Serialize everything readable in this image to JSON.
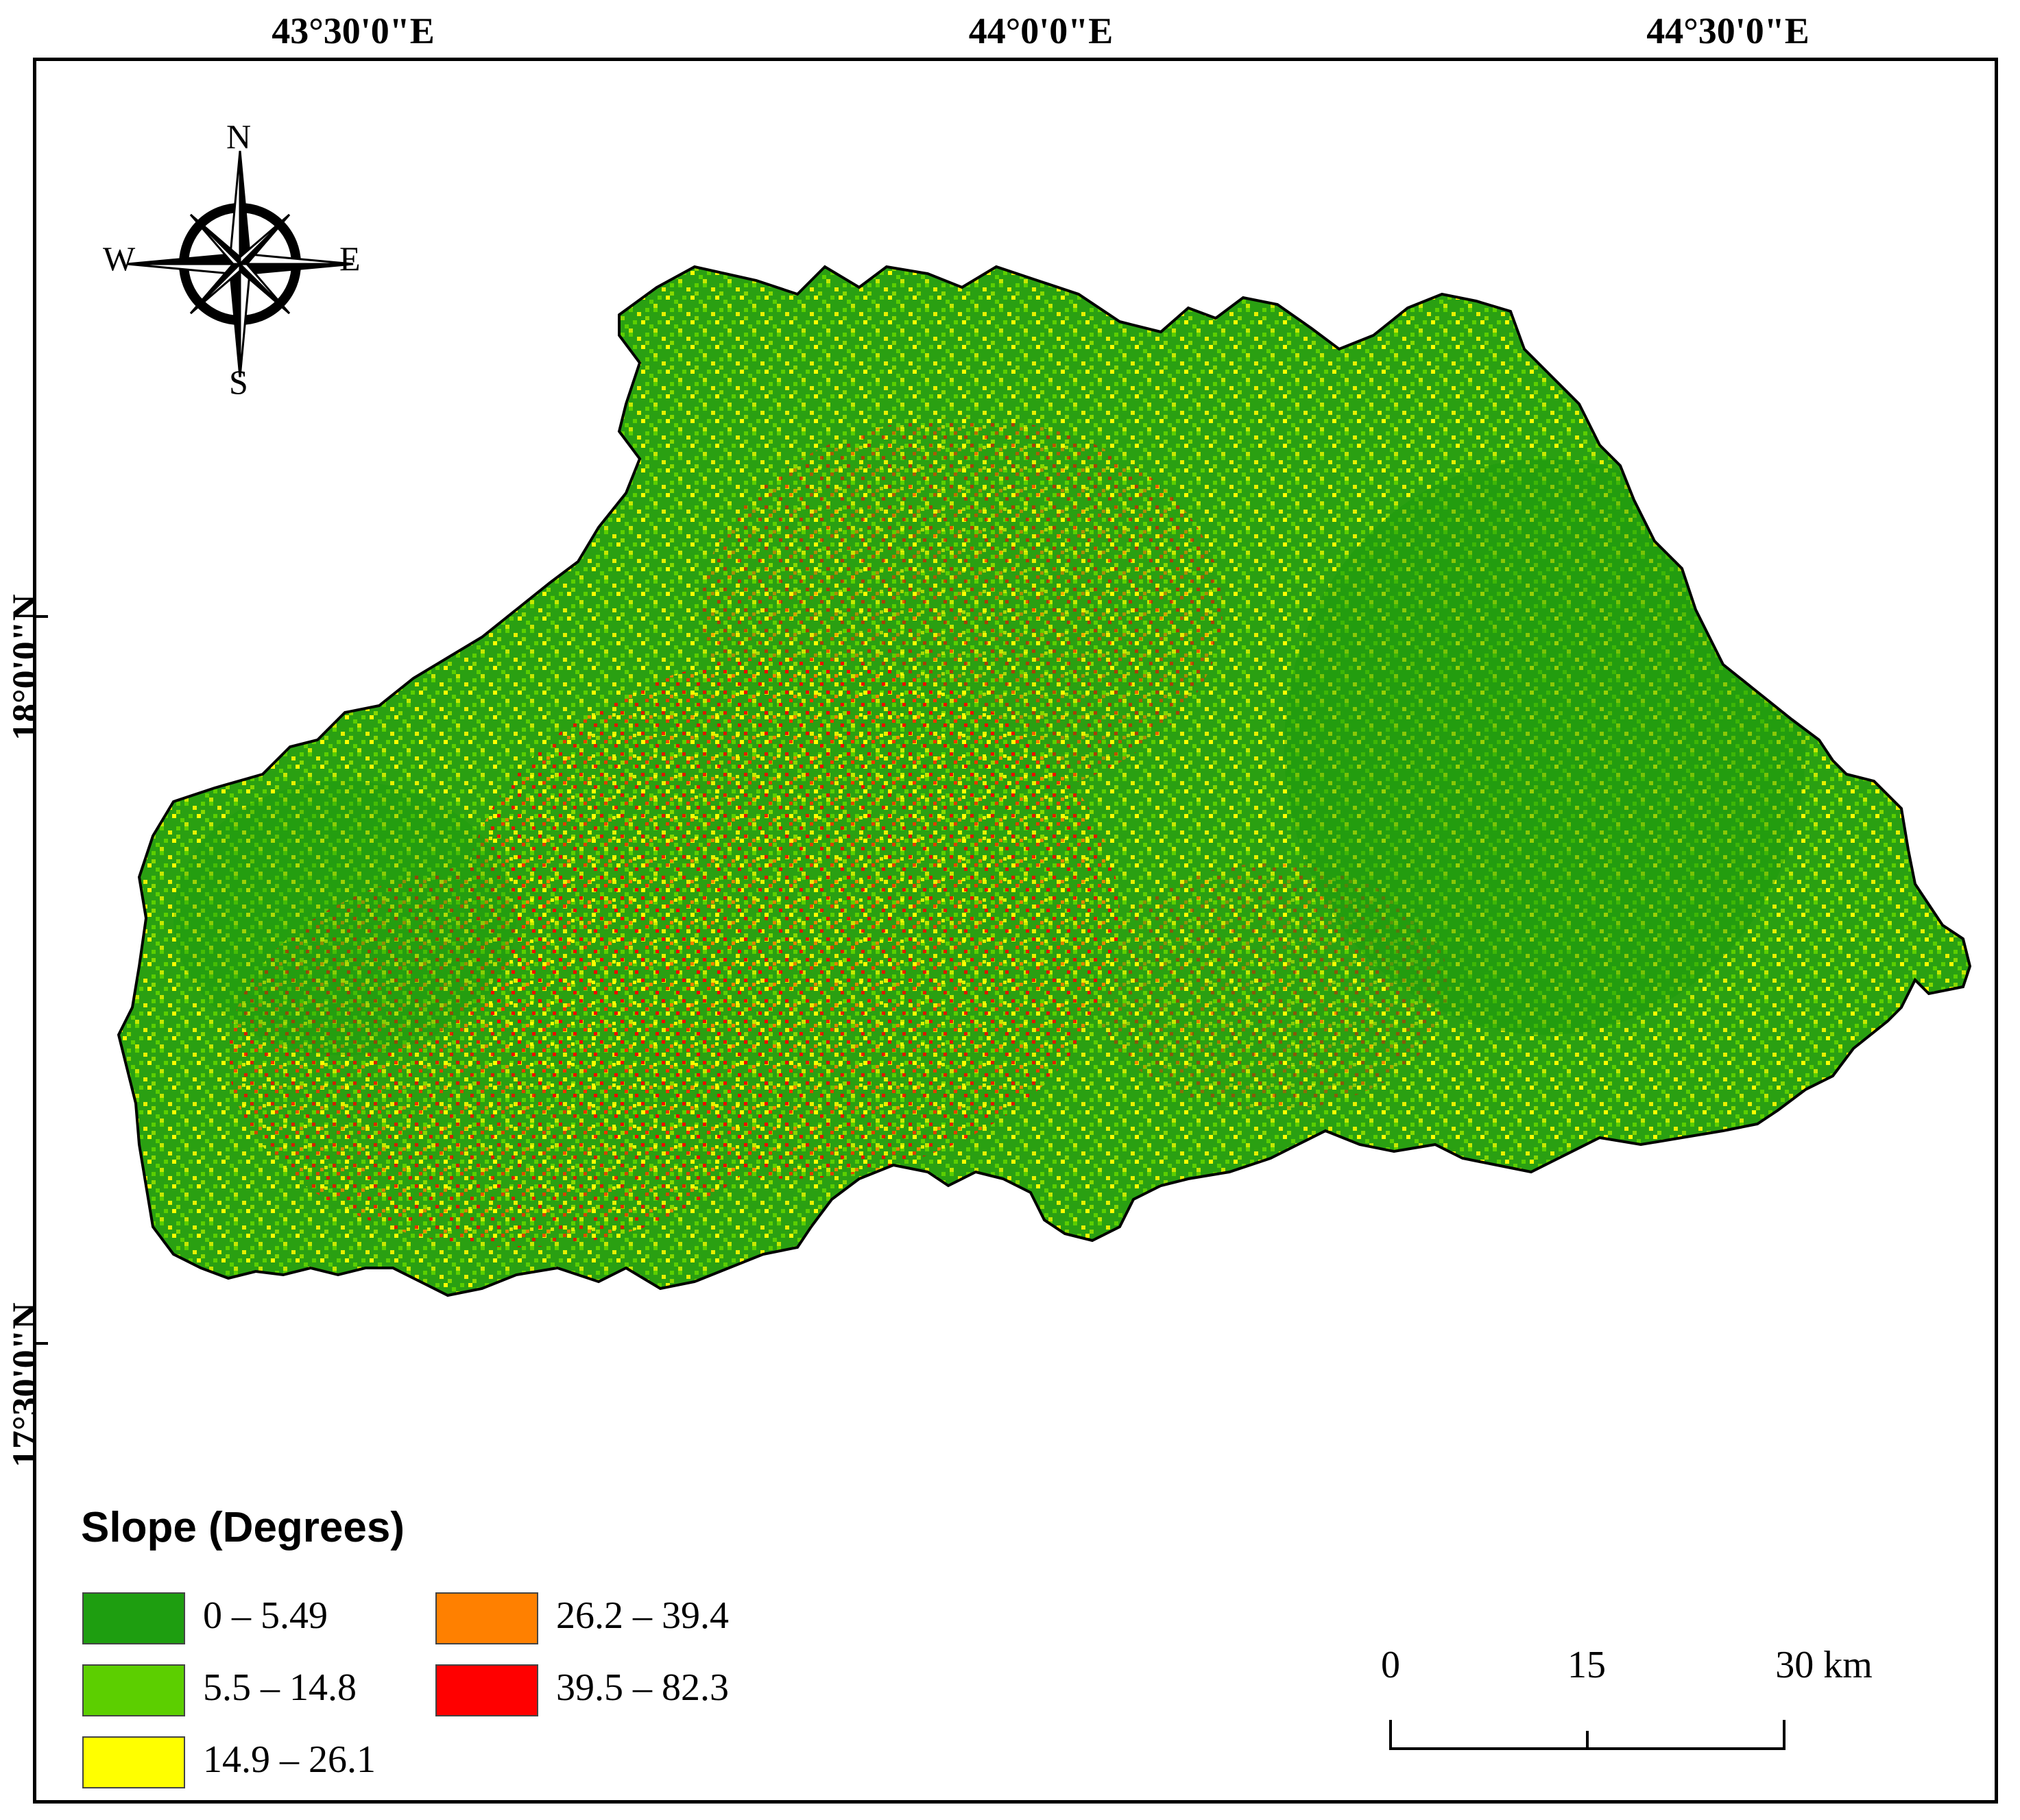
{
  "graticule": {
    "longitudes": [
      {
        "label": "43°30'0\"E"
      },
      {
        "label": "44°0'0\"E"
      },
      {
        "label": "44°30'0\"E"
      }
    ],
    "latitudes": [
      {
        "label": "18°0'0\"N"
      },
      {
        "label": "17°30'0\"N"
      }
    ]
  },
  "north_arrow": {
    "icon": "compass-rose-icon",
    "north": "N",
    "south": "S",
    "east": "E",
    "west": "W"
  },
  "legend": {
    "title": "Slope (Degrees)",
    "classes": [
      {
        "label": "0 – 5.49",
        "color": "#1e9e10"
      },
      {
        "label": "5.5 – 14.8",
        "color": "#5ccf00"
      },
      {
        "label": "14.9 – 26.1",
        "color": "#ffff00"
      },
      {
        "label": "26.2 – 39.4",
        "color": "#ff8000"
      },
      {
        "label": "39.5 – 82.3",
        "color": "#ff0000"
      }
    ]
  },
  "scale_bar": {
    "labels": [
      "0",
      "15",
      "30 km"
    ]
  },
  "colors": {
    "frame": "#000000",
    "basin_outline": "#000000"
  }
}
